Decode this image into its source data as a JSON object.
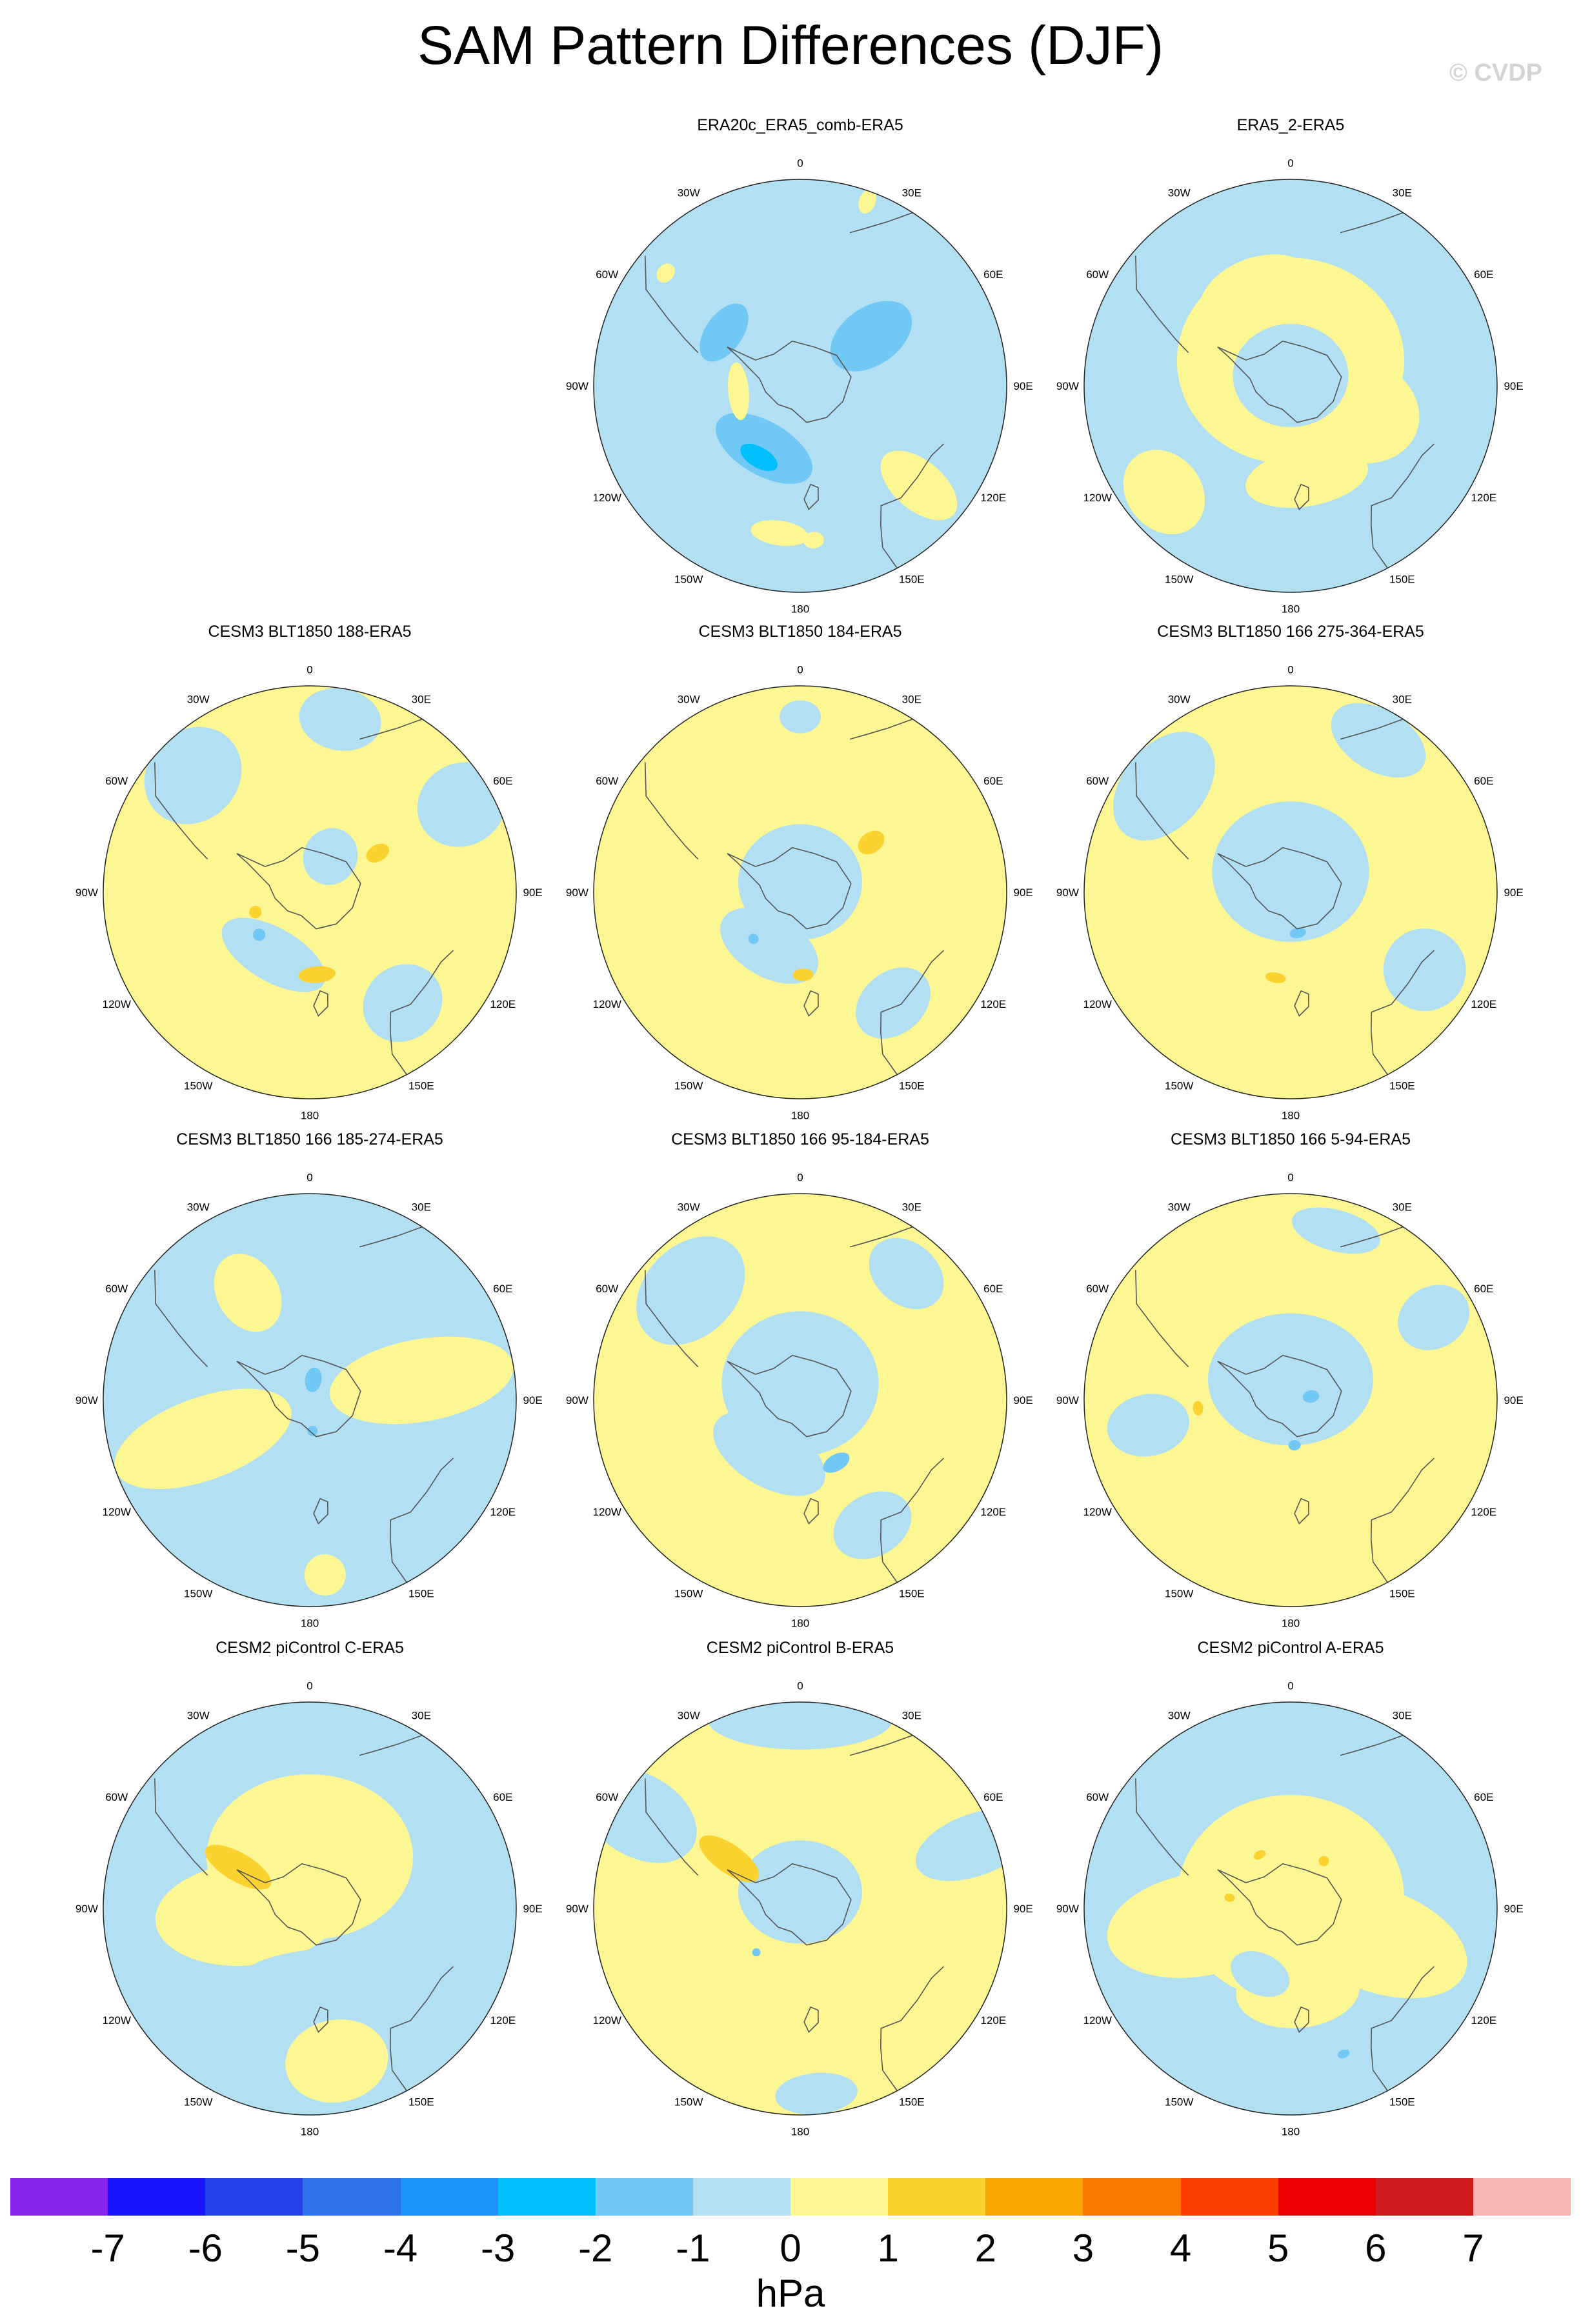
{
  "title": "SAM Pattern Differences (DJF)",
  "credit": "© CVDP",
  "units": "hPa",
  "longitude_labels": [
    "0",
    "30E",
    "60E",
    "90E",
    "120E",
    "150E",
    "180",
    "150W",
    "120W",
    "90W",
    "60W",
    "30W"
  ],
  "panels": [
    {
      "title": "ERA20c_ERA5_comb-ERA5",
      "row": 0,
      "col": 1,
      "dominant": "negative",
      "blobs": [
        {
          "lon": -55,
          "r": 0.45,
          "rx": 0.16,
          "ry": 0.09,
          "level": -2
        },
        {
          "lon": 55,
          "r": 0.42,
          "rx": 0.14,
          "ry": 0.22,
          "level": -2
        },
        {
          "lon": -150,
          "r": 0.35,
          "rx": 0.26,
          "ry": 0.13,
          "level": -2
        },
        {
          "lon": -150,
          "r": 0.4,
          "rx": 0.1,
          "ry": 0.05,
          "level": -3
        },
        {
          "lon": -95,
          "r": 0.3,
          "rx": 0.14,
          "ry": 0.05,
          "level": 1
        },
        {
          "lon": 130,
          "r": 0.75,
          "rx": 0.12,
          "ry": 0.22,
          "level": 1
        },
        {
          "lon": -172,
          "r": 0.72,
          "rx": 0.14,
          "ry": 0.06,
          "level": 1
        },
        {
          "lon": -50,
          "r": 0.85,
          "rx": 0.05,
          "ry": 0.04,
          "level": 1
        },
        {
          "lon": 20,
          "r": 0.95,
          "rx": 0.04,
          "ry": 0.06,
          "level": 1
        },
        {
          "lon": 175,
          "r": 0.75,
          "rx": 0.05,
          "ry": 0.04,
          "level": 1
        }
      ]
    },
    {
      "title": "ERA5_2-ERA5",
      "row": 0,
      "col": 2,
      "dominant": "negative",
      "blobs": [
        {
          "lon": 0,
          "r": 0.12,
          "rx": 0.55,
          "ry": 0.5,
          "level": 1
        },
        {
          "lon": -20,
          "r": 0.45,
          "rx": 0.3,
          "ry": 0.2,
          "level": 1
        },
        {
          "lon": 110,
          "r": 0.35,
          "rx": 0.25,
          "ry": 0.3,
          "level": 1
        },
        {
          "lon": -130,
          "r": 0.8,
          "rx": 0.22,
          "ry": 0.18,
          "level": 1
        },
        {
          "lon": 170,
          "r": 0.45,
          "rx": 0.3,
          "ry": 0.14,
          "level": 1
        },
        {
          "lon": 0,
          "r": 0.05,
          "rx": 0.28,
          "ry": 0.25,
          "level": -1
        }
      ]
    },
    {
      "title": "CESM3 BLT1850 188-ERA5",
      "row": 1,
      "col": 0,
      "dominant": "positive",
      "blobs": [
        {
          "lon": -45,
          "r": 0.8,
          "rx": 0.25,
          "ry": 0.22,
          "level": -1
        },
        {
          "lon": 10,
          "r": 0.85,
          "rx": 0.2,
          "ry": 0.15,
          "level": -1
        },
        {
          "lon": 60,
          "r": 0.85,
          "rx": 0.2,
          "ry": 0.22,
          "level": -1
        },
        {
          "lon": 140,
          "r": 0.7,
          "rx": 0.2,
          "ry": 0.18,
          "level": -1
        },
        {
          "lon": -150,
          "r": 0.35,
          "rx": 0.28,
          "ry": 0.13,
          "level": -1
        },
        {
          "lon": 30,
          "r": 0.2,
          "rx": 0.13,
          "ry": 0.14,
          "level": -1
        },
        {
          "lon": 60,
          "r": 0.38,
          "rx": 0.04,
          "ry": 0.06,
          "level": 2
        },
        {
          "lon": 175,
          "r": 0.4,
          "rx": 0.09,
          "ry": 0.04,
          "level": 2
        },
        {
          "lon": -110,
          "r": 0.28,
          "rx": 0.03,
          "ry": 0.03,
          "level": 2
        },
        {
          "lon": -130,
          "r": 0.32,
          "rx": 0.03,
          "ry": 0.03,
          "level": -2
        }
      ]
    },
    {
      "title": "CESM3 BLT1850 184-ERA5",
      "row": 1,
      "col": 1,
      "dominant": "positive",
      "blobs": [
        {
          "lon": 0,
          "r": 0.05,
          "rx": 0.3,
          "ry": 0.28,
          "level": -1
        },
        {
          "lon": -150,
          "r": 0.3,
          "rx": 0.26,
          "ry": 0.15,
          "level": -1
        },
        {
          "lon": 140,
          "r": 0.7,
          "rx": 0.2,
          "ry": 0.15,
          "level": -1
        },
        {
          "lon": 0,
          "r": 0.85,
          "rx": 0.1,
          "ry": 0.08,
          "level": -1
        },
        {
          "lon": 55,
          "r": 0.42,
          "rx": 0.05,
          "ry": 0.07,
          "level": 2
        },
        {
          "lon": 178,
          "r": 0.4,
          "rx": 0.05,
          "ry": 0.03,
          "level": 2
        },
        {
          "lon": -135,
          "r": 0.32,
          "rx": 0.025,
          "ry": 0.025,
          "level": -2
        }
      ]
    },
    {
      "title": "CESM3 BLT1850 166 275-364-ERA5",
      "row": 1,
      "col": 2,
      "dominant": "positive",
      "blobs": [
        {
          "lon": 0,
          "r": 0.1,
          "rx": 0.38,
          "ry": 0.34,
          "level": -1
        },
        {
          "lon": -50,
          "r": 0.8,
          "rx": 0.3,
          "ry": 0.2,
          "level": -1
        },
        {
          "lon": 30,
          "r": 0.85,
          "rx": 0.25,
          "ry": 0.15,
          "level": -1
        },
        {
          "lon": 120,
          "r": 0.75,
          "rx": 0.2,
          "ry": 0.2,
          "level": -1
        },
        {
          "lon": 170,
          "r": 0.2,
          "rx": 0.04,
          "ry": 0.025,
          "level": -2
        },
        {
          "lon": -170,
          "r": 0.42,
          "rx": 0.05,
          "ry": 0.025,
          "level": 2
        }
      ]
    },
    {
      "title": "CESM3 BLT1850 166 185-274-ERA5",
      "row": 2,
      "col": 0,
      "dominant": "negative",
      "blobs": [
        {
          "lon": -110,
          "r": 0.55,
          "rx": 0.2,
          "ry": 0.45,
          "level": 1
        },
        {
          "lon": -30,
          "r": 0.6,
          "rx": 0.15,
          "ry": 0.2,
          "level": 1
        },
        {
          "lon": 80,
          "r": 0.55,
          "rx": 0.2,
          "ry": 0.45,
          "level": 1
        },
        {
          "lon": 175,
          "r": 0.85,
          "rx": 0.1,
          "ry": 0.1,
          "level": 1
        },
        {
          "lon": 10,
          "r": 0.1,
          "rx": 0.04,
          "ry": 0.06,
          "level": -2
        },
        {
          "lon": 175,
          "r": 0.15,
          "rx": 0.025,
          "ry": 0.025,
          "level": -2
        }
      ]
    },
    {
      "title": "CESM3 BLT1850 166 95-184-ERA5",
      "row": 2,
      "col": 1,
      "dominant": "positive",
      "blobs": [
        {
          "lon": 0,
          "r": 0.08,
          "rx": 0.38,
          "ry": 0.35,
          "level": -1
        },
        {
          "lon": -150,
          "r": 0.3,
          "rx": 0.3,
          "ry": 0.16,
          "level": -1
        },
        {
          "lon": -45,
          "r": 0.75,
          "rx": 0.3,
          "ry": 0.22,
          "level": -1
        },
        {
          "lon": 40,
          "r": 0.8,
          "rx": 0.2,
          "ry": 0.15,
          "level": -1
        },
        {
          "lon": 150,
          "r": 0.7,
          "rx": 0.2,
          "ry": 0.15,
          "level": -1
        },
        {
          "lon": 150,
          "r": 0.35,
          "rx": 0.07,
          "ry": 0.04,
          "level": -2
        }
      ]
    },
    {
      "title": "CESM3 BLT1850 166 5-94-ERA5",
      "row": 2,
      "col": 2,
      "dominant": "positive",
      "blobs": [
        {
          "lon": 0,
          "r": 0.1,
          "rx": 0.4,
          "ry": 0.32,
          "level": -1
        },
        {
          "lon": 15,
          "r": 0.85,
          "rx": 0.22,
          "ry": 0.1,
          "level": -1
        },
        {
          "lon": 60,
          "r": 0.8,
          "rx": 0.15,
          "ry": 0.18,
          "level": -1
        },
        {
          "lon": -100,
          "r": 0.7,
          "rx": 0.15,
          "ry": 0.2,
          "level": -1
        },
        {
          "lon": 175,
          "r": 0.22,
          "rx": 0.03,
          "ry": 0.025,
          "level": -2
        },
        {
          "lon": 80,
          "r": 0.1,
          "rx": 0.03,
          "ry": 0.04,
          "level": -2
        },
        {
          "lon": -95,
          "r": 0.45,
          "rx": 0.035,
          "ry": 0.025,
          "level": 2
        }
      ]
    },
    {
      "title": "CESM2 piControl C-ERA5",
      "row": 3,
      "col": 0,
      "dominant": "negative",
      "blobs": [
        {
          "lon": 0,
          "r": 0.25,
          "rx": 0.5,
          "ry": 0.4,
          "level": 1
        },
        {
          "lon": -95,
          "r": 0.3,
          "rx": 0.25,
          "ry": 0.45,
          "level": 1
        },
        {
          "lon": 170,
          "r": 0.75,
          "rx": 0.25,
          "ry": 0.2,
          "level": 1
        },
        {
          "lon": 175,
          "r": 0.3,
          "rx": 0.35,
          "ry": 0.1,
          "level": -1
        },
        {
          "lon": -60,
          "r": 0.4,
          "rx": 0.07,
          "ry": 0.18,
          "level": 2
        }
      ]
    },
    {
      "title": "CESM2 piControl B-ERA5",
      "row": 3,
      "col": 1,
      "dominant": "positive",
      "blobs": [
        {
          "lon": 0,
          "r": 0.08,
          "rx": 0.3,
          "ry": 0.25,
          "level": -1
        },
        {
          "lon": 0,
          "r": 0.92,
          "rx": 0.45,
          "ry": 0.15,
          "level": -1
        },
        {
          "lon": -60,
          "r": 0.9,
          "rx": 0.2,
          "ry": 0.3,
          "level": -1
        },
        {
          "lon": 70,
          "r": 0.9,
          "rx": 0.15,
          "ry": 0.3,
          "level": -1
        },
        {
          "lon": 175,
          "r": 0.9,
          "rx": 0.2,
          "ry": 0.1,
          "level": -1
        },
        {
          "lon": -55,
          "r": 0.42,
          "rx": 0.07,
          "ry": 0.17,
          "level": 2
        },
        {
          "lon": -135,
          "r": 0.3,
          "rx": 0.02,
          "ry": 0.02,
          "level": -2
        }
      ]
    },
    {
      "title": "CESM2 piControl A-ERA5",
      "row": 3,
      "col": 2,
      "dominant": "negative",
      "blobs": [
        {
          "lon": 0,
          "r": 0.05,
          "rx": 0.55,
          "ry": 0.5,
          "level": 1
        },
        {
          "lon": -100,
          "r": 0.45,
          "rx": 0.25,
          "ry": 0.45,
          "level": 1
        },
        {
          "lon": 110,
          "r": 0.45,
          "rx": 0.25,
          "ry": 0.45,
          "level": 1
        },
        {
          "lon": 175,
          "r": 0.4,
          "rx": 0.3,
          "ry": 0.18,
          "level": 1
        },
        {
          "lon": -155,
          "r": 0.35,
          "rx": 0.15,
          "ry": 0.1,
          "level": -1
        },
        {
          "lon": -30,
          "r": 0.3,
          "rx": 0.03,
          "ry": 0.02,
          "level": 2
        },
        {
          "lon": 35,
          "r": 0.28,
          "rx": 0.025,
          "ry": 0.025,
          "level": 2
        },
        {
          "lon": -80,
          "r": 0.3,
          "rx": 0.02,
          "ry": 0.025,
          "level": 2
        },
        {
          "lon": 160,
          "r": 0.75,
          "rx": 0.03,
          "ry": 0.02,
          "level": -2
        }
      ]
    }
  ],
  "colorbar": {
    "labels": [
      "-7",
      "-6",
      "-5",
      "-4",
      "-3",
      "-2",
      "-1",
      "0",
      "1",
      "2",
      "3",
      "4",
      "5",
      "6",
      "7"
    ],
    "colors": [
      "#8722ee",
      "#1a14ff",
      "#2542e9",
      "#2f72ec",
      "#1d93fa",
      "#00c0fb",
      "#72c8f4",
      "#b3dff3",
      "#fdf793",
      "#fbd22f",
      "#fba500",
      "#fa7a00",
      "#fd3d00",
      "#ea0000",
      "#cd1a1a",
      "#fbb4b4"
    ]
  }
}
